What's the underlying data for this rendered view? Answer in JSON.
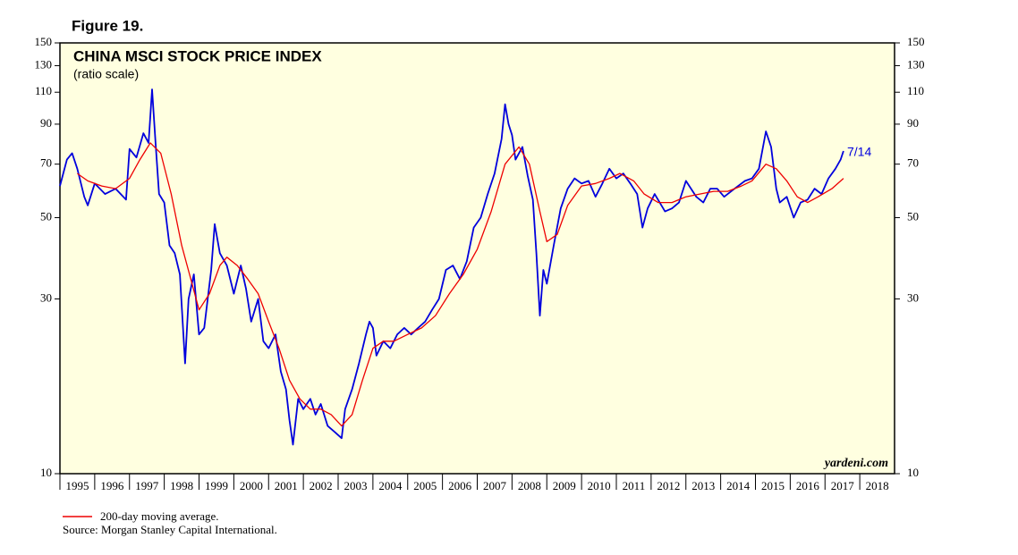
{
  "chart_data": {
    "type": "line",
    "figure_label": "Figure 19.",
    "title": "CHINA MSCI STOCK PRICE INDEX",
    "subtitle": "(ratio scale)",
    "annotations": [
      "7/14",
      "yardeni.com"
    ],
    "source": "Source: Morgan Stanley Capital International.",
    "log_scale": true,
    "xlim": [
      1995,
      2019
    ],
    "ylim": [
      10,
      150
    ],
    "xticks": [
      1995,
      1996,
      1997,
      1998,
      1999,
      2000,
      2001,
      2002,
      2003,
      2004,
      2005,
      2006,
      2007,
      2008,
      2009,
      2010,
      2011,
      2012,
      2013,
      2014,
      2015,
      2016,
      2017,
      2018
    ],
    "yticks": [
      10,
      30,
      50,
      70,
      90,
      110,
      130,
      150
    ],
    "series": [
      {
        "color": "#0000dd",
        "x": [
          1995.0,
          1995.2,
          1995.35,
          1995.5,
          1995.7,
          1995.8,
          1996.0,
          1996.3,
          1996.6,
          1996.9,
          1997.0,
          1997.2,
          1997.4,
          1997.55,
          1997.65,
          1997.75,
          1997.85,
          1998.0,
          1998.15,
          1998.3,
          1998.45,
          1998.6,
          1998.7,
          1998.85,
          1999.0,
          1999.15,
          1999.35,
          1999.45,
          1999.6,
          1999.8,
          2000.0,
          2000.2,
          2000.35,
          2000.5,
          2000.7,
          2000.85,
          2001.0,
          2001.2,
          2001.35,
          2001.5,
          2001.6,
          2001.7,
          2001.85,
          2002.0,
          2002.2,
          2002.35,
          2002.5,
          2002.7,
          2002.9,
          2003.1,
          2003.2,
          2003.4,
          2003.6,
          2003.8,
          2003.9,
          2004.0,
          2004.1,
          2004.3,
          2004.5,
          2004.7,
          2004.9,
          2005.1,
          2005.3,
          2005.5,
          2005.7,
          2005.9,
          2006.1,
          2006.3,
          2006.5,
          2006.7,
          2006.9,
          2007.1,
          2007.3,
          2007.5,
          2007.7,
          2007.8,
          2007.9,
          2008.0,
          2008.1,
          2008.3,
          2008.45,
          2008.6,
          2008.7,
          2008.8,
          2008.9,
          2009.0,
          2009.2,
          2009.4,
          2009.6,
          2009.8,
          2010.0,
          2010.2,
          2010.4,
          2010.6,
          2010.8,
          2011.0,
          2011.2,
          2011.4,
          2011.6,
          2011.75,
          2011.9,
          2012.1,
          2012.4,
          2012.6,
          2012.8,
          2013.0,
          2013.3,
          2013.5,
          2013.7,
          2013.9,
          2014.1,
          2014.4,
          2014.7,
          2014.9,
          2015.1,
          2015.3,
          2015.45,
          2015.6,
          2015.7,
          2015.9,
          2016.1,
          2016.3,
          2016.5,
          2016.7,
          2016.9,
          2017.1,
          2017.3,
          2017.45,
          2017.53
        ],
        "values": [
          61,
          72,
          75,
          68,
          57,
          54,
          62,
          58,
          60,
          56,
          77,
          73,
          85,
          80,
          112,
          80,
          58,
          55,
          42,
          40,
          35,
          20,
          30,
          35,
          24,
          25,
          36,
          48,
          40,
          37,
          31,
          37,
          32,
          26,
          30,
          23,
          22,
          24,
          19,
          17,
          14,
          12,
          16,
          15,
          16,
          14.5,
          15.5,
          13.5,
          13,
          12.5,
          15,
          17,
          20,
          24,
          26,
          25,
          21,
          23,
          22,
          24,
          25,
          24,
          25,
          26,
          28,
          30,
          36,
          37,
          34,
          38,
          47,
          50,
          58,
          66,
          82,
          102,
          90,
          84,
          72,
          78,
          65,
          56,
          40,
          27,
          36,
          33,
          42,
          53,
          60,
          64,
          62,
          63,
          57,
          62,
          68,
          64,
          66,
          62,
          58,
          47,
          53,
          58,
          52,
          53,
          55,
          63,
          57,
          55,
          60,
          60,
          57,
          60,
          63,
          64,
          68,
          86,
          78,
          60,
          55,
          57,
          50,
          55,
          56,
          60,
          58,
          64,
          68,
          72,
          76
        ]
      },
      {
        "name": "200-day moving average.",
        "color": "#ee0000",
        "x": [
          1995.5,
          1995.8,
          1996.2,
          1996.6,
          1997.0,
          1997.3,
          1997.6,
          1997.9,
          1998.2,
          1998.5,
          1998.8,
          1999.0,
          1999.3,
          1999.6,
          1999.8,
          2000.1,
          2000.4,
          2000.7,
          2001.0,
          2001.3,
          2001.6,
          2001.9,
          2002.2,
          2002.5,
          2002.8,
          2003.1,
          2003.4,
          2003.7,
          2004.0,
          2004.3,
          2004.6,
          2005.0,
          2005.4,
          2005.8,
          2006.2,
          2006.6,
          2007.0,
          2007.4,
          2007.8,
          2008.2,
          2008.5,
          2008.8,
          2009.0,
          2009.3,
          2009.6,
          2010.0,
          2010.4,
          2010.8,
          2011.1,
          2011.5,
          2011.8,
          2012.2,
          2012.6,
          2013.0,
          2013.4,
          2013.8,
          2014.2,
          2014.6,
          2014.9,
          2015.3,
          2015.6,
          2015.9,
          2016.2,
          2016.5,
          2016.8,
          2017.2,
          2017.53
        ],
        "values": [
          66,
          63,
          61,
          60,
          64,
          72,
          80,
          75,
          58,
          42,
          33,
          28,
          31,
          37,
          39,
          37,
          34,
          31,
          26,
          22,
          18,
          16,
          15,
          15,
          14.5,
          13.5,
          14.5,
          18,
          22,
          23,
          23,
          24,
          25,
          27,
          31,
          35,
          41,
          52,
          70,
          78,
          70,
          52,
          43,
          45,
          54,
          61,
          62,
          64,
          66,
          63,
          58,
          55,
          55,
          57,
          58,
          59,
          59,
          61,
          63,
          70,
          68,
          63,
          57,
          55,
          57,
          60,
          64
        ]
      }
    ]
  }
}
